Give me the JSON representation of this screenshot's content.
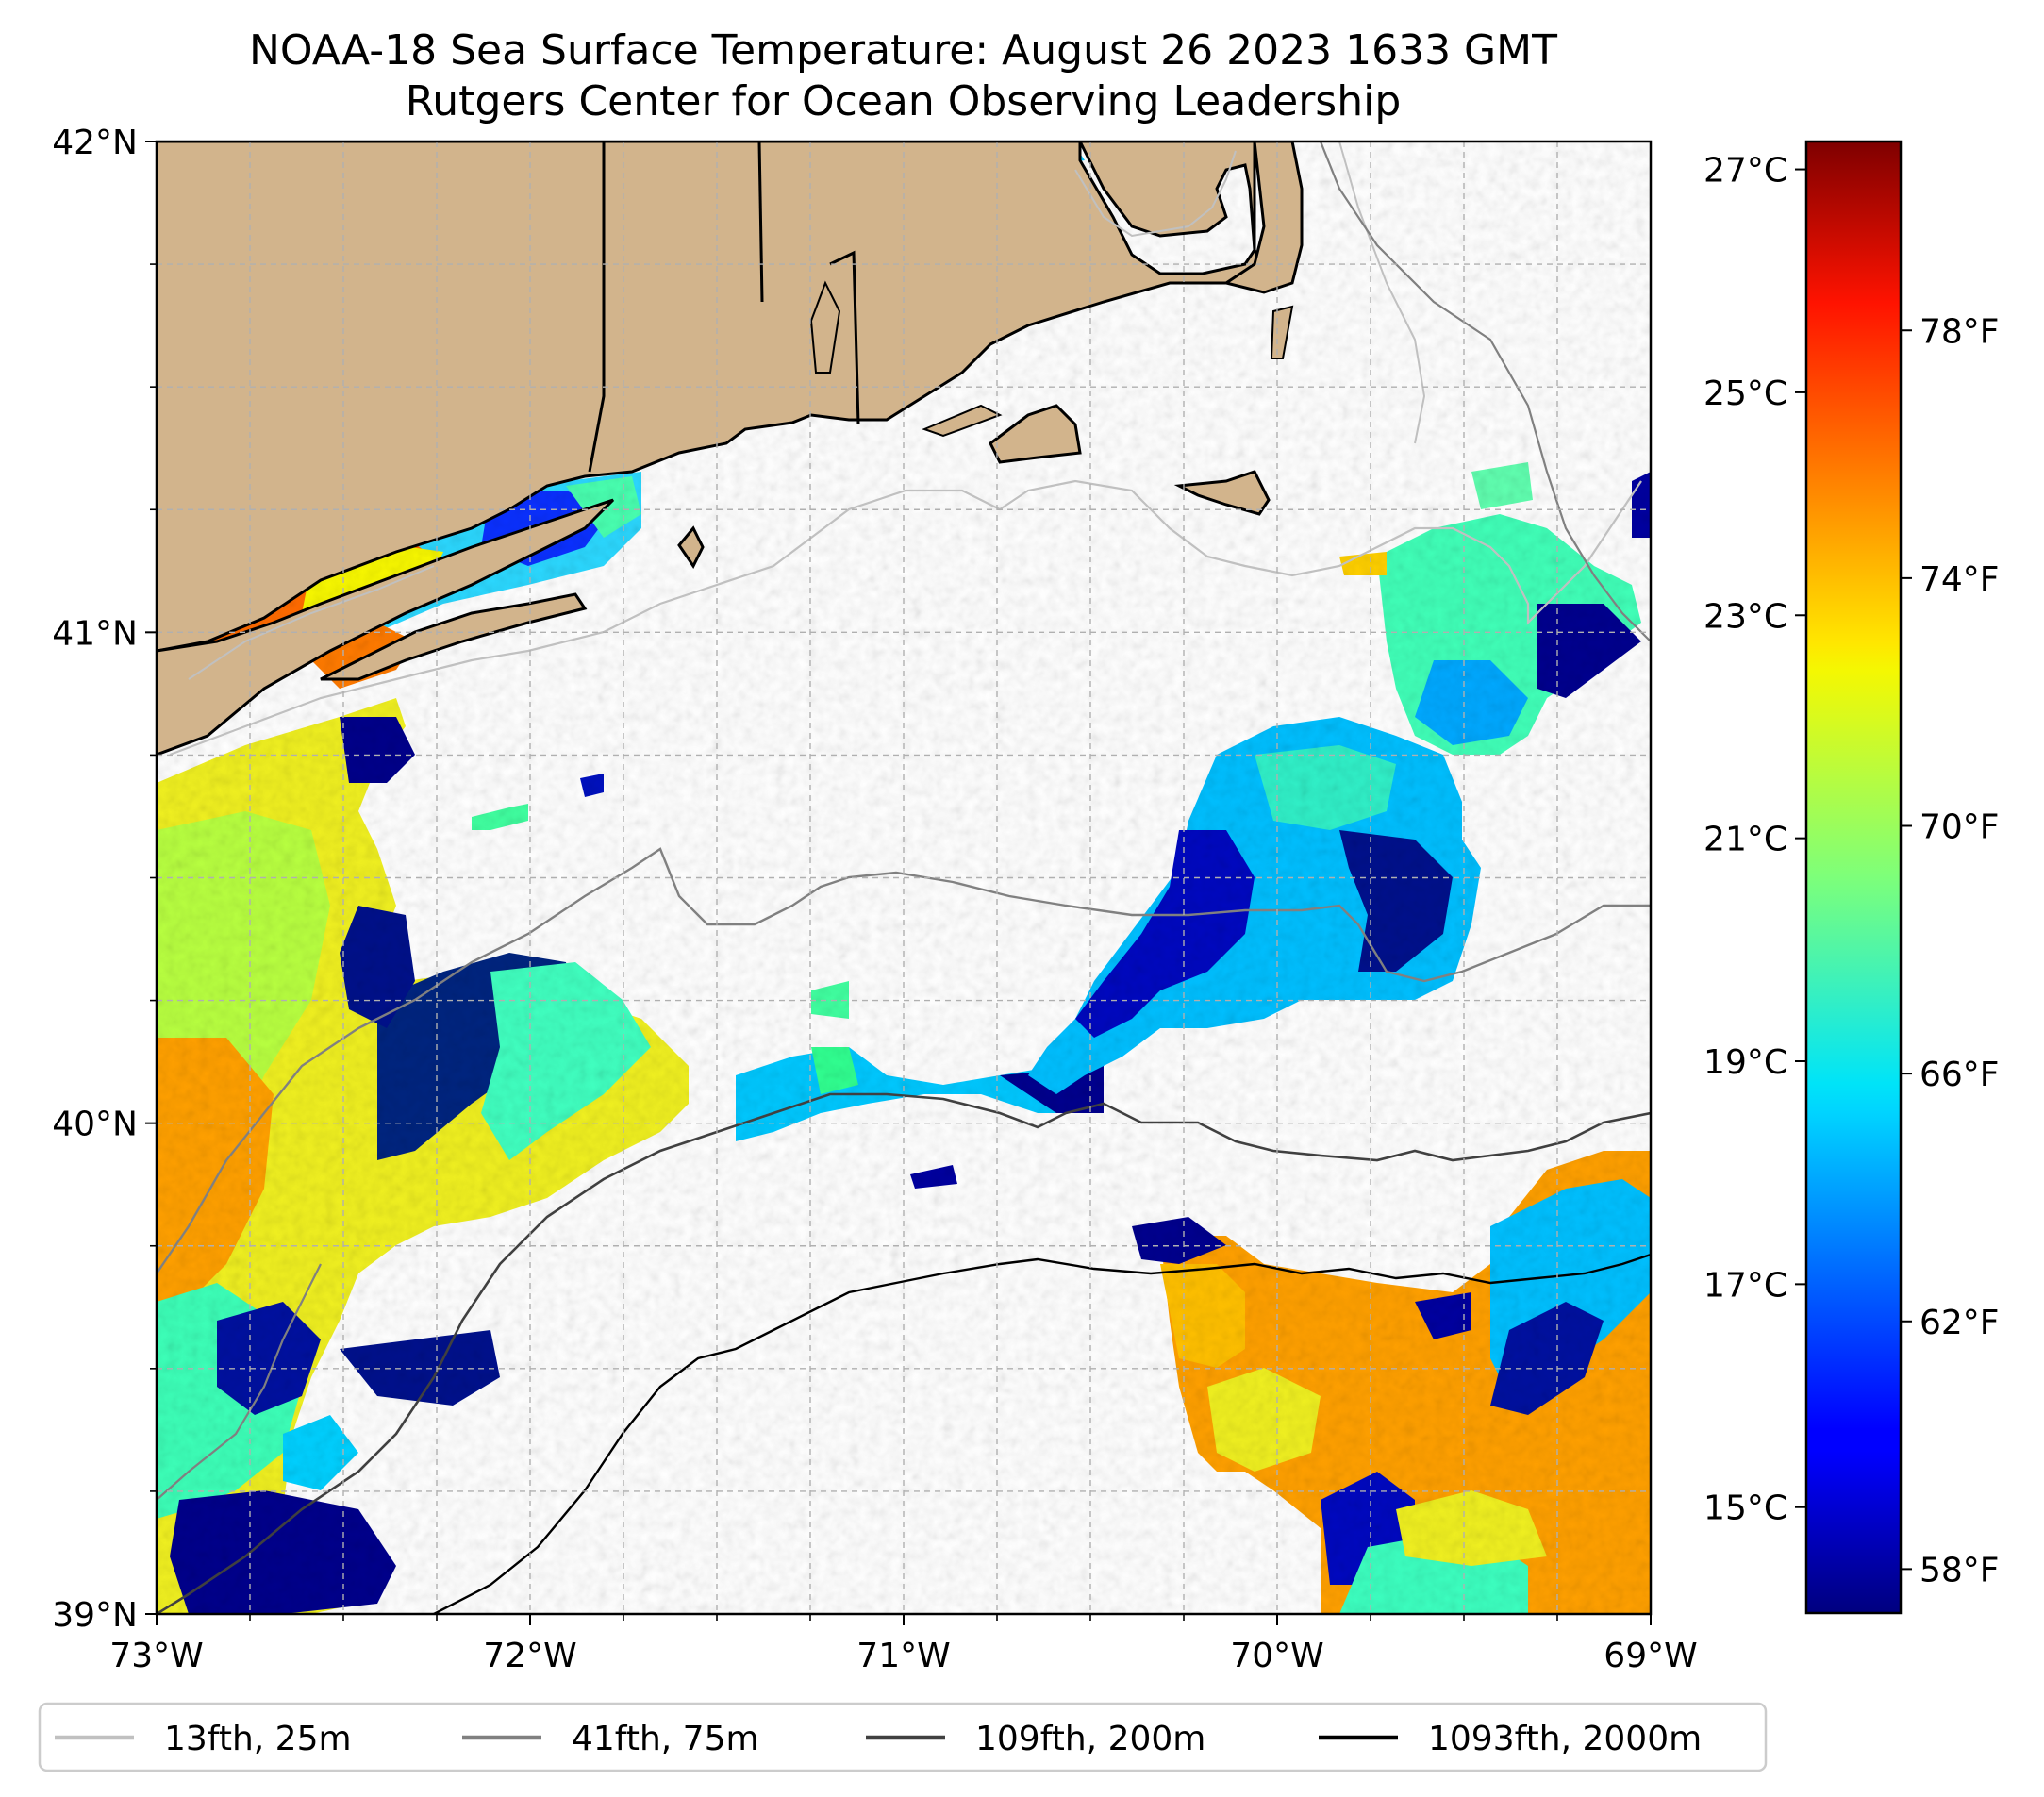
{
  "title": {
    "line1": "NOAA-18 Sea Surface Temperature: August 26 2023 1633 GMT",
    "line2": "Rutgers Center for Ocean Observing Leadership"
  },
  "map": {
    "lon_range": [
      -73,
      -69
    ],
    "lat_range": [
      39,
      42
    ],
    "lon_ticks": [
      {
        "value": -73,
        "label": "73°W"
      },
      {
        "value": -72,
        "label": "72°W"
      },
      {
        "value": -71,
        "label": "71°W"
      },
      {
        "value": -70,
        "label": "70°W"
      },
      {
        "value": -69,
        "label": "69°W"
      }
    ],
    "lat_ticks": [
      {
        "value": 42,
        "label": "42°N"
      },
      {
        "value": 41,
        "label": "41°N"
      },
      {
        "value": 40,
        "label": "40°N"
      },
      {
        "value": 39,
        "label": "39°N"
      }
    ],
    "minor_grid_step_deg": 0.25
  },
  "colorbar": {
    "colormap": "jet",
    "celsius_ticks": [
      {
        "value": 27,
        "label": "27°C"
      },
      {
        "value": 25,
        "label": "25°C"
      },
      {
        "value": 23,
        "label": "23°C"
      },
      {
        "value": 21,
        "label": "21°C"
      },
      {
        "value": 19,
        "label": "19°C"
      },
      {
        "value": 17,
        "label": "17°C"
      },
      {
        "value": 15,
        "label": "15°C"
      }
    ],
    "fahrenheit_ticks": [
      {
        "value": 78,
        "label": "78°F"
      },
      {
        "value": 74,
        "label": "74°F"
      },
      {
        "value": 70,
        "label": "70°F"
      },
      {
        "value": 66,
        "label": "66°F"
      },
      {
        "value": 62,
        "label": "62°F"
      },
      {
        "value": 58,
        "label": "58°F"
      }
    ],
    "range_celsius": [
      14.05,
      27.25
    ]
  },
  "legend": [
    {
      "label": "13fth, 25m",
      "color": "#c0c0c0"
    },
    {
      "label": "41fth, 75m",
      "color": "#808080"
    },
    {
      "label": "109fth, 200m",
      "color": "#404040"
    },
    {
      "label": "1093fth, 2000m",
      "color": "#000000"
    }
  ],
  "colors": {
    "land": "#d2b48c",
    "ocean_no_data": "#ffffff",
    "grid": "#b0b0b0"
  }
}
